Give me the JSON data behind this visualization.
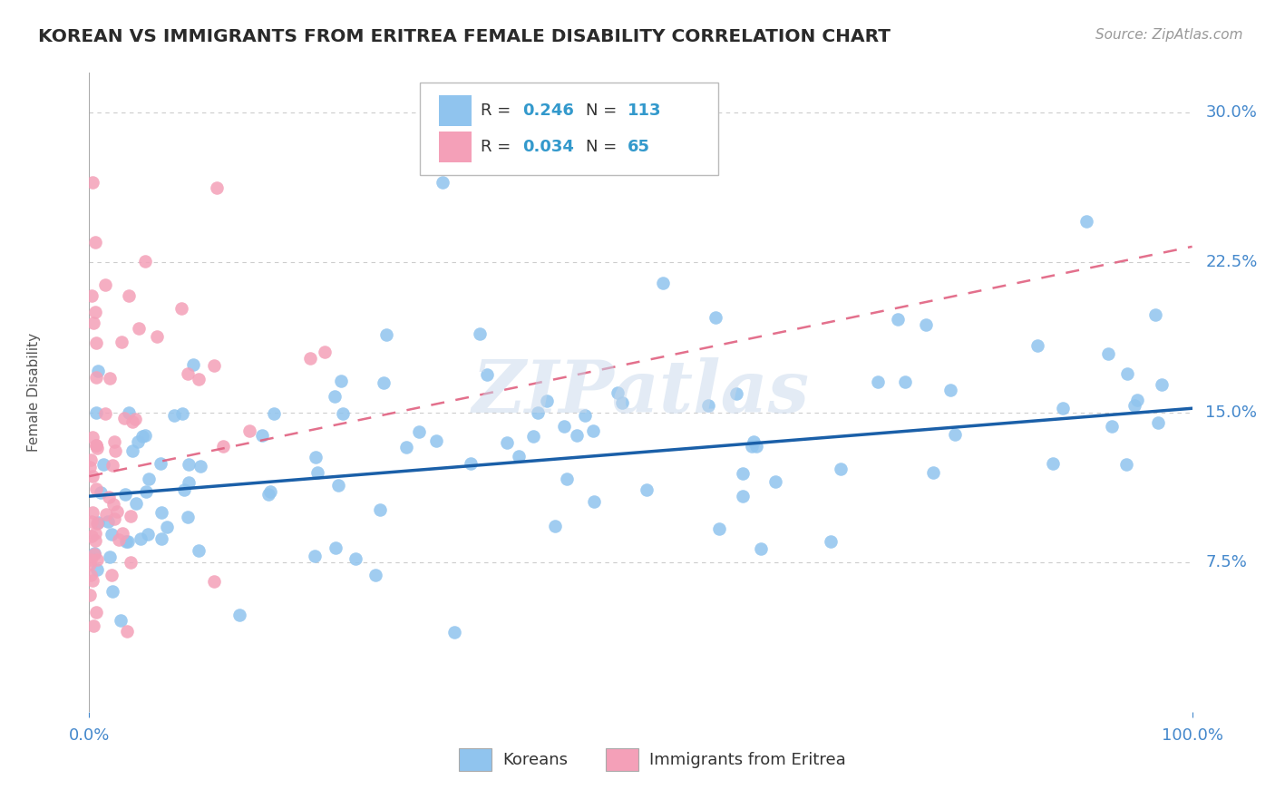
{
  "title": "KOREAN VS IMMIGRANTS FROM ERITREA FEMALE DISABILITY CORRELATION CHART",
  "source": "Source: ZipAtlas.com",
  "ylabel": "Female Disability",
  "xlim": [
    0,
    1.0
  ],
  "ylim": [
    0,
    0.32
  ],
  "yticks": [
    0.0,
    0.075,
    0.15,
    0.225,
    0.3
  ],
  "ytick_labels": [
    "",
    "7.5%",
    "15.0%",
    "22.5%",
    "30.0%"
  ],
  "korean_R": 0.246,
  "korean_N": 113,
  "eritrea_R": 0.034,
  "eritrea_N": 65,
  "korean_color": "#90C4EE",
  "eritrea_color": "#F4A0B8",
  "korean_line_color": "#1A5FA8",
  "eritrea_line_color": "#E06080",
  "background_color": "#FFFFFF",
  "grid_color": "#CCCCCC",
  "title_color": "#2A2A2A",
  "label_color": "#4488CC",
  "watermark": "ZIPatlas",
  "legend_R_color": "#3399CC",
  "legend_N_color": "#3399CC"
}
